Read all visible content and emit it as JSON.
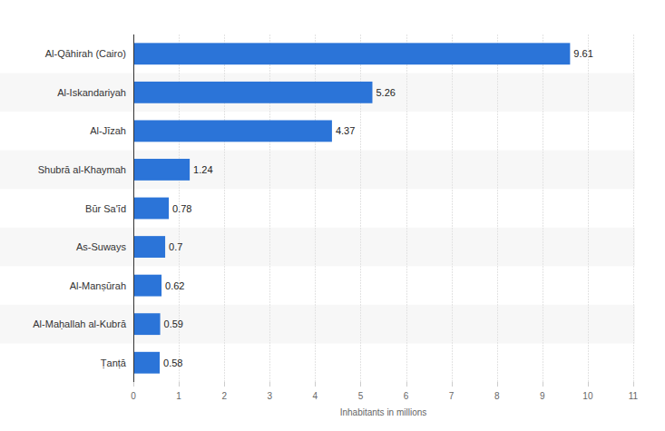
{
  "chart_data": {
    "type": "bar",
    "orientation": "horizontal",
    "categories": [
      "Al-Qāhirah (Cairo)",
      "Al-Iskandariyah",
      "Al-Jīzah",
      "Shubrā al-Khaymah",
      "Būr Sa'īd",
      "As-Suways",
      "Al-Manṣūrah",
      "Al-Maḥallah al-Kubrā",
      "Ṭanṭā"
    ],
    "values": [
      9.61,
      5.26,
      4.37,
      1.24,
      0.78,
      0.7,
      0.62,
      0.59,
      0.58
    ],
    "color": "#2b74d8",
    "x_label": "Inhabitants in millions",
    "xlim": [
      0,
      11
    ],
    "xticks": [
      0,
      1,
      2,
      3,
      4,
      5,
      6,
      7,
      8,
      9,
      10,
      11
    ],
    "grid": true,
    "data_labels": true
  }
}
